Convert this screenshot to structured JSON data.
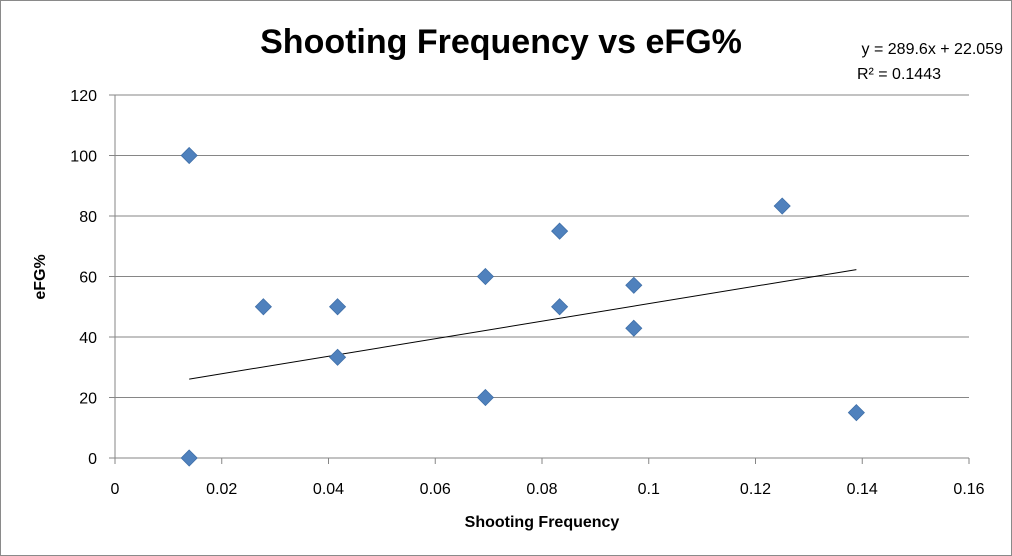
{
  "chart_data": {
    "type": "scatter",
    "title": "Shooting Frequency vs eFG%",
    "xlabel": "Shooting Frequency",
    "ylabel": "eFG%",
    "xlim": [
      0,
      0.16
    ],
    "ylim": [
      0,
      120
    ],
    "xticks": [
      "0",
      "0.02",
      "0.04",
      "0.06",
      "0.08",
      "0.1",
      "0.12",
      "0.14",
      "0.16"
    ],
    "yticks": [
      "0",
      "20",
      "40",
      "60",
      "80",
      "100",
      "120"
    ],
    "grid": {
      "horizontal": true,
      "vertical": false
    },
    "marker": "diamond",
    "marker_color": "#4f81bd",
    "trendline_color": "#000000",
    "points": [
      {
        "x": 0.0139,
        "y": 100
      },
      {
        "x": 0.0139,
        "y": 0
      },
      {
        "x": 0.0278,
        "y": 50
      },
      {
        "x": 0.0417,
        "y": 50
      },
      {
        "x": 0.0417,
        "y": 33.3
      },
      {
        "x": 0.0694,
        "y": 60
      },
      {
        "x": 0.0694,
        "y": 20
      },
      {
        "x": 0.0833,
        "y": 75
      },
      {
        "x": 0.0833,
        "y": 50
      },
      {
        "x": 0.0972,
        "y": 57.1
      },
      {
        "x": 0.0972,
        "y": 42.9
      },
      {
        "x": 0.125,
        "y": 83.3
      },
      {
        "x": 0.1389,
        "y": 15
      }
    ],
    "trendline": {
      "type": "linear",
      "slope": 289.6,
      "intercept": 22.059,
      "x_range": [
        0.0139,
        0.1389
      ],
      "equation_text": "y = 289.6x + 22.059",
      "r2_text": "R² = 0.1443"
    }
  }
}
